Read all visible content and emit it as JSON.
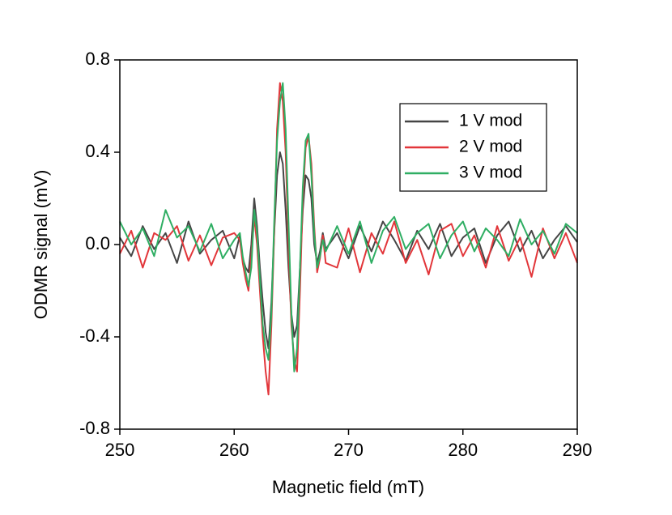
{
  "chart_data": {
    "type": "line",
    "x_label": "Magnetic field (mT)",
    "y_label": "ODMR signal (mV)",
    "x": [
      250,
      251,
      252,
      253,
      254,
      255,
      256,
      257,
      258,
      259,
      260,
      260.5,
      260.75,
      261,
      261.25,
      261.5,
      261.75,
      262,
      262.25,
      262.5,
      262.75,
      263,
      263.25,
      263.5,
      263.75,
      264,
      264.25,
      264.5,
      264.75,
      265,
      265.25,
      265.5,
      265.75,
      266,
      266.25,
      266.5,
      266.75,
      267,
      267.25,
      267.5,
      267.75,
      268,
      269,
      270,
      271,
      272,
      273,
      274,
      275,
      276,
      277,
      278,
      279,
      280,
      281,
      282,
      283,
      284,
      285,
      286,
      287,
      288,
      289,
      290
    ],
    "series": [
      {
        "name": "1 V mod",
        "color": "#454545",
        "values": [
          0.03,
          -0.05,
          0.08,
          -0.02,
          0.05,
          -0.08,
          0.1,
          -0.04,
          0.02,
          0.06,
          -0.06,
          0.04,
          -0.06,
          -0.1,
          -0.12,
          0,
          0.2,
          0.08,
          -0.1,
          -0.25,
          -0.38,
          -0.45,
          -0.25,
          0.05,
          0.3,
          0.4,
          0.35,
          0.15,
          -0.1,
          -0.3,
          -0.4,
          -0.35,
          -0.1,
          0.15,
          0.3,
          0.28,
          0.2,
          0,
          -0.08,
          -0.03,
          0.05,
          -0.02,
          0.05,
          -0.06,
          0.08,
          -0.03,
          0.1,
          0.02,
          -0.07,
          0.06,
          -0.02,
          0.09,
          -0.05,
          0.03,
          0.07,
          -0.08,
          0.04,
          0.1,
          -0.03,
          0.06,
          -0.06,
          0.02,
          0.08,
          0.01
        ]
      },
      {
        "name": "2 V mod",
        "color": "#e2363a",
        "values": [
          -0.04,
          0.06,
          -0.1,
          0.05,
          0.02,
          0.08,
          -0.07,
          0.04,
          -0.09,
          0.03,
          0.05,
          0.02,
          -0.08,
          -0.15,
          -0.2,
          -0.05,
          0.12,
          0,
          -0.2,
          -0.4,
          -0.55,
          -0.65,
          -0.35,
          0.05,
          0.5,
          0.7,
          0.62,
          0.4,
          0,
          -0.35,
          -0.5,
          -0.55,
          -0.2,
          0.2,
          0.42,
          0.47,
          0.35,
          0.08,
          -0.12,
          -0.06,
          0.04,
          -0.08,
          -0.1,
          0.07,
          -0.12,
          0.05,
          -0.04,
          0.1,
          -0.08,
          0.02,
          -0.13,
          0.06,
          0.09,
          -0.05,
          0.04,
          -0.1,
          0.08,
          -0.07,
          0.03,
          -0.14,
          0.07,
          -0.06,
          0.05,
          -0.08
        ]
      },
      {
        "name": "3 V mod",
        "color": "#2fae63",
        "values": [
          0.1,
          0,
          0.07,
          -0.05,
          0.15,
          0.03,
          0.08,
          -0.03,
          0.09,
          -0.06,
          0.02,
          0.05,
          -0.05,
          -0.12,
          -0.18,
          -0.1,
          0.15,
          0.05,
          -0.15,
          -0.35,
          -0.45,
          -0.5,
          -0.3,
          0.1,
          0.45,
          0.62,
          0.7,
          0.5,
          0.1,
          -0.3,
          -0.55,
          -0.45,
          -0.1,
          0.25,
          0.45,
          0.48,
          0.3,
          0.05,
          -0.1,
          -0.05,
          0.02,
          -0.03,
          0.08,
          -0.04,
          0.1,
          -0.08,
          0.06,
          0.12,
          -0.02,
          0.05,
          0.09,
          -0.06,
          0.04,
          0.1,
          -0.03,
          0.07,
          0.02,
          -0.05,
          0.11,
          0,
          0.06,
          -0.04,
          0.09,
          0.05
        ]
      }
    ],
    "xlim": [
      250,
      290
    ],
    "xticks": [
      250,
      260,
      270,
      280,
      290
    ],
    "ylim": [
      -0.8,
      0.8
    ],
    "yticks": [
      -0.8,
      -0.4,
      {
        "value": 0,
        "label": "0.0"
      },
      0.4,
      0.8
    ],
    "legend": "upper right"
  }
}
